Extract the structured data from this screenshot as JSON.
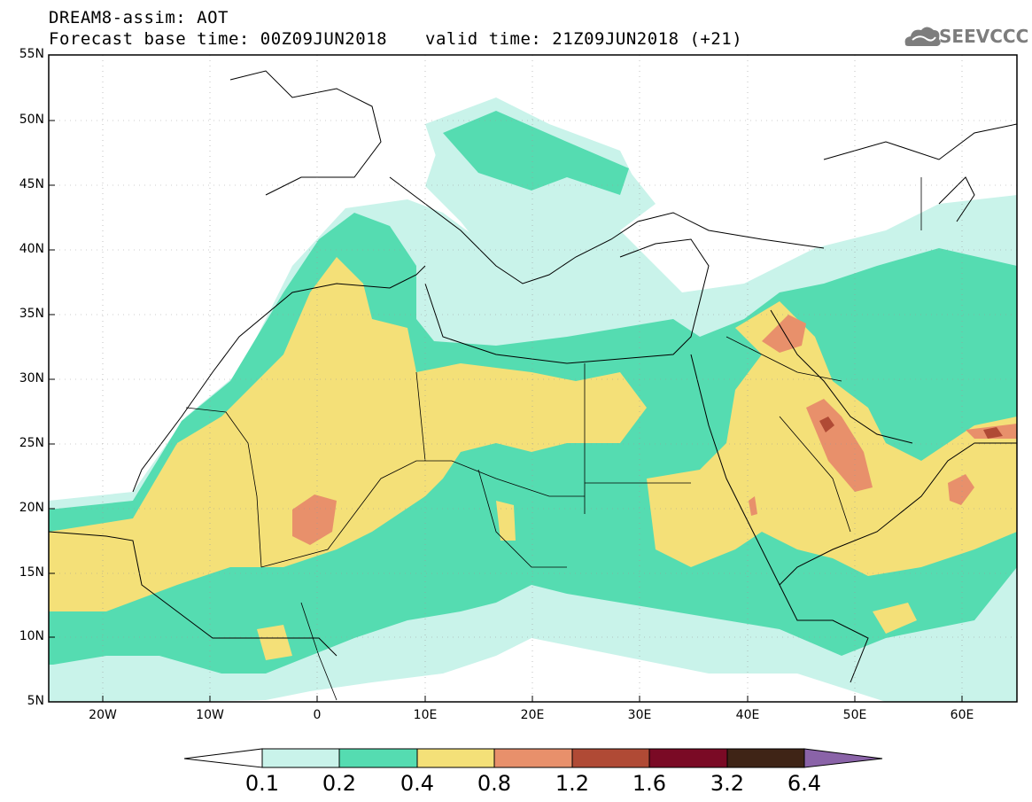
{
  "header": {
    "title": "DREAM8-assim: AOT",
    "base_time": "Forecast base time: 00Z09JUN2018",
    "valid_time": "valid time: 21Z09JUN2018 (+21)"
  },
  "logo": {
    "text": "SEEVCCC",
    "icon": "cloud-icon"
  },
  "map": {
    "lat_labels": [
      "55N",
      "50N",
      "45N",
      "40N",
      "35N",
      "30N",
      "25N",
      "20N",
      "15N",
      "10N",
      "5N"
    ],
    "lon_labels": [
      "20W",
      "10W",
      "0",
      "10E",
      "20E",
      "30E",
      "40E",
      "50E",
      "60E"
    ],
    "lon_range": [
      -25,
      65
    ],
    "lat_range": [
      5,
      55
    ]
  },
  "colorbar": {
    "labels": [
      "0.1",
      "0.2",
      "0.4",
      "0.8",
      "1.2",
      "1.6",
      "3.2",
      "6.4"
    ],
    "colors": [
      "#ffffff",
      "#c9f3ea",
      "#55dcb1",
      "#f4e078",
      "#e8906b",
      "#b04a35",
      "#7a0a25",
      "#3f2416",
      "#8a63a8"
    ]
  }
}
